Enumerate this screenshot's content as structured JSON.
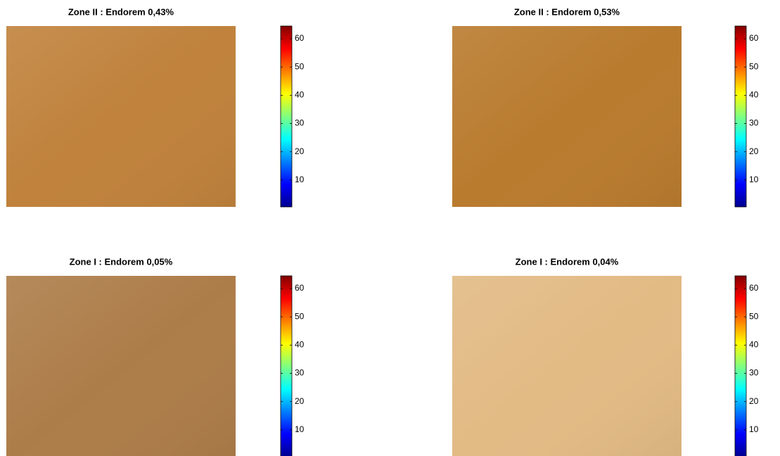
{
  "chart_data": [
    {
      "type": "image",
      "title": "Zone II : Endorem 0,43%",
      "color": "#c0823c",
      "colormap": "jet",
      "clim": [
        0.5,
        64.5
      ],
      "cticks": [
        10,
        20,
        30,
        40,
        50,
        60
      ]
    },
    {
      "type": "image",
      "title": "Zone II : Endorem 0,53%",
      "color": "#b97b2e",
      "colormap": "jet",
      "clim": [
        0.5,
        64.5
      ],
      "cticks": [
        10,
        20,
        30,
        40,
        50,
        60
      ]
    },
    {
      "type": "image",
      "title": "Zone I : Endorem 0,05%",
      "color": "#ad7d49",
      "colormap": "jet",
      "clim": [
        0.5,
        64.5
      ],
      "cticks": [
        10,
        20,
        30,
        40,
        50,
        60
      ]
    },
    {
      "type": "image",
      "title": "Zone I : Endorem 0,04%",
      "color": "#e2ba84",
      "colormap": "jet",
      "clim": [
        0.5,
        64.5
      ],
      "cticks": [
        10,
        20,
        30,
        40,
        50,
        60
      ]
    }
  ]
}
